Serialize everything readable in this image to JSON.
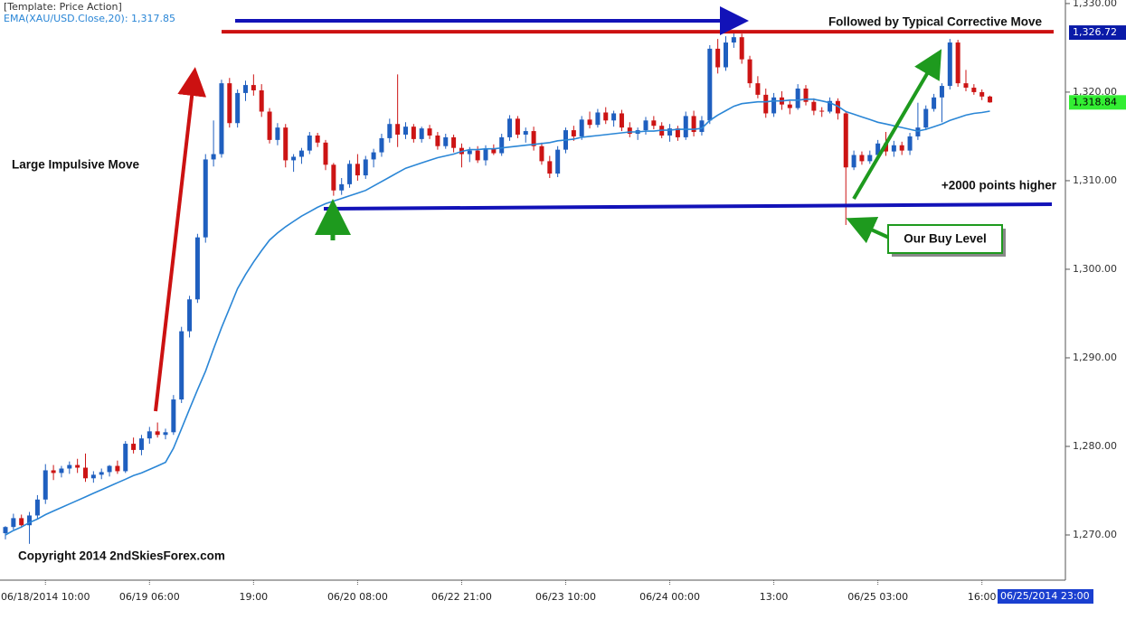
{
  "chart_data": {
    "type": "candlestick",
    "template": "[Template: Price Action]",
    "up_color": "#1f5fbf",
    "down_color": "#cc1414",
    "categories": [
      null,
      null,
      null,
      null,
      null,
      "06/18/2014 10:00",
      null,
      null,
      null,
      null,
      null,
      null,
      null,
      null,
      null,
      null,
      null,
      null,
      "06/19 06:00",
      null,
      null,
      null,
      null,
      null,
      null,
      null,
      null,
      null,
      null,
      null,
      null,
      "19:00",
      null,
      null,
      null,
      null,
      null,
      null,
      null,
      null,
      null,
      null,
      null,
      null,
      "06/20 08:00",
      null,
      null,
      null,
      null,
      null,
      null,
      null,
      null,
      null,
      null,
      null,
      null,
      "06/22 21:00",
      null,
      null,
      null,
      null,
      null,
      null,
      null,
      null,
      null,
      null,
      null,
      null,
      "06/23 10:00",
      null,
      null,
      null,
      null,
      null,
      null,
      null,
      null,
      null,
      null,
      null,
      null,
      "06/24 00:00",
      null,
      null,
      null,
      null,
      null,
      null,
      null,
      null,
      null,
      null,
      null,
      null,
      "13:00",
      null,
      null,
      null,
      null,
      null,
      null,
      null,
      null,
      null,
      null,
      null,
      null,
      "06/25 03:00",
      null,
      null,
      null,
      null,
      null,
      null,
      null,
      null,
      null,
      null,
      null,
      null,
      "16:00",
      null
    ],
    "open": [
      1270.2,
      1270.9,
      1271.9,
      1271.1,
      1272.2,
      1274.0,
      1277.3,
      1277.0,
      1277.5,
      1277.9,
      1277.6,
      1276.4,
      1276.8,
      1277.1,
      1277.8,
      1277.2,
      1280.3,
      1279.6,
      1280.9,
      1281.7,
      1281.3,
      1281.6,
      1285.3,
      1293.0,
      1296.6,
      1303.6,
      1312.4,
      1313.0,
      1321.0,
      1316.5,
      1319.9,
      1320.8,
      1320.2,
      1317.8,
      1314.6,
      1316.0,
      1312.3,
      1312.7,
      1313.4,
      1315.1,
      1314.3,
      1311.8,
      1308.9,
      1309.6,
      1311.9,
      1310.6,
      1312.4,
      1313.2,
      1314.8,
      1316.4,
      1315.2,
      1316.1,
      1314.7,
      1315.9,
      1315.1,
      1313.9,
      1314.9,
      1313.7,
      1313.0,
      1313.4,
      1312.3,
      1313.6,
      1313.1,
      1314.9,
      1317.0,
      1315.2,
      1315.6,
      1313.9,
      1312.2,
      1310.8,
      1313.5,
      1315.7,
      1315.0,
      1316.9,
      1316.3,
      1317.7,
      1316.8,
      1317.6,
      1316.0,
      1315.3,
      1315.7,
      1316.8,
      1316.2,
      1315.1,
      1315.9,
      1314.9,
      1317.3,
      1315.5,
      1316.8,
      1324.9,
      1322.8,
      1325.6,
      1326.2,
      1323.7,
      1321.0,
      1319.7,
      1317.6,
      1319.4,
      1318.6,
      1318.2,
      1320.4,
      1318.9,
      1317.9,
      1317.8,
      1319.0,
      1317.6,
      1311.5,
      1312.9,
      1312.2,
      1312.9,
      1314.2,
      1313.3,
      1314.0,
      1313.4,
      1315.0,
      1316.0,
      1318.1,
      1319.4,
      1320.7,
      1325.6,
      1321.0,
      1320.5,
      1320.0,
      1319.5
    ],
    "high": [
      1271.0,
      1272.4,
      1272.3,
      1272.6,
      1274.5,
      1278.0,
      1277.9,
      1277.8,
      1278.3,
      1278.6,
      1279.2,
      1277.2,
      1277.5,
      1277.9,
      1278.4,
      1280.6,
      1281.0,
      1281.3,
      1282.2,
      1282.7,
      1282.0,
      1285.8,
      1293.5,
      1297.0,
      1304.0,
      1313.0,
      1316.8,
      1321.4,
      1321.6,
      1320.3,
      1321.3,
      1322.0,
      1320.9,
      1318.2,
      1316.5,
      1316.4,
      1313.0,
      1313.7,
      1315.5,
      1315.4,
      1314.6,
      1312.0,
      1310.3,
      1312.3,
      1313.0,
      1312.8,
      1313.6,
      1315.3,
      1317.0,
      1322.0,
      1316.6,
      1316.4,
      1316.1,
      1316.3,
      1315.5,
      1315.3,
      1315.2,
      1314.2,
      1313.8,
      1313.9,
      1314.0,
      1314.1,
      1315.3,
      1317.4,
      1317.3,
      1316.0,
      1316.1,
      1314.3,
      1312.8,
      1313.9,
      1316.0,
      1316.2,
      1317.3,
      1317.8,
      1318.1,
      1318.3,
      1317.9,
      1318.0,
      1316.6,
      1316.0,
      1317.2,
      1317.3,
      1316.6,
      1316.4,
      1316.2,
      1317.8,
      1317.9,
      1317.3,
      1325.3,
      1326.0,
      1326.3,
      1326.7,
      1326.6,
      1324.1,
      1321.8,
      1320.4,
      1319.9,
      1320.1,
      1319.0,
      1320.9,
      1320.8,
      1319.3,
      1318.3,
      1319.4,
      1319.3,
      1317.9,
      1313.4,
      1313.3,
      1313.4,
      1314.6,
      1315.5,
      1314.5,
      1314.4,
      1315.4,
      1318.8,
      1318.5,
      1319.8,
      1321.0,
      1326.0,
      1325.9,
      1322.5,
      1320.9,
      1320.3,
      1319.6
    ],
    "low": [
      1269.5,
      1270.6,
      1270.8,
      1269.0,
      1271.8,
      1273.5,
      1276.2,
      1276.5,
      1276.9,
      1277.0,
      1276.0,
      1275.9,
      1276.3,
      1276.6,
      1276.9,
      1277.0,
      1279.2,
      1279.0,
      1280.3,
      1281.0,
      1280.8,
      1281.3,
      1284.9,
      1292.3,
      1296.2,
      1303.0,
      1311.6,
      1312.6,
      1316.0,
      1316.0,
      1319.0,
      1319.6,
      1317.2,
      1314.2,
      1314.0,
      1311.5,
      1311.0,
      1311.9,
      1313.0,
      1313.8,
      1311.2,
      1308.3,
      1308.4,
      1309.2,
      1310.0,
      1310.2,
      1311.5,
      1312.7,
      1314.3,
      1313.8,
      1314.7,
      1314.3,
      1314.3,
      1314.7,
      1313.5,
      1313.6,
      1313.2,
      1311.5,
      1312.1,
      1312.0,
      1311.7,
      1312.9,
      1312.8,
      1314.5,
      1314.8,
      1314.3,
      1313.4,
      1311.8,
      1310.3,
      1310.4,
      1313.1,
      1314.5,
      1314.6,
      1315.9,
      1316.0,
      1316.4,
      1316.1,
      1315.6,
      1314.9,
      1314.6,
      1315.2,
      1315.8,
      1314.8,
      1314.4,
      1314.5,
      1314.6,
      1315.0,
      1315.1,
      1316.4,
      1322.1,
      1322.4,
      1325.0,
      1323.2,
      1320.5,
      1319.3,
      1317.1,
      1317.2,
      1318.0,
      1317.5,
      1318.0,
      1318.5,
      1317.4,
      1317.2,
      1317.6,
      1316.9,
      1305.0,
      1311.2,
      1311.8,
      1311.9,
      1312.4,
      1312.8,
      1312.7,
      1312.9,
      1312.9,
      1314.6,
      1315.7,
      1317.8,
      1316.6,
      1320.3,
      1320.6,
      1320.1,
      1319.7,
      1319.1,
      1318.8
    ],
    "close": [
      1270.9,
      1271.9,
      1271.1,
      1272.2,
      1274.0,
      1277.3,
      1277.0,
      1277.5,
      1277.9,
      1277.6,
      1276.4,
      1276.8,
      1277.1,
      1277.8,
      1277.2,
      1280.3,
      1279.6,
      1280.9,
      1281.7,
      1281.3,
      1281.6,
      1285.3,
      1293.0,
      1296.6,
      1303.6,
      1312.4,
      1313.0,
      1321.0,
      1316.5,
      1319.9,
      1320.8,
      1320.2,
      1317.8,
      1314.6,
      1316.0,
      1312.3,
      1312.7,
      1313.4,
      1315.1,
      1314.3,
      1311.8,
      1308.9,
      1309.6,
      1311.9,
      1310.6,
      1312.4,
      1313.2,
      1314.8,
      1316.4,
      1315.2,
      1316.1,
      1314.7,
      1315.9,
      1315.1,
      1313.9,
      1314.9,
      1313.7,
      1313.0,
      1313.4,
      1312.3,
      1313.6,
      1313.1,
      1314.9,
      1317.0,
      1315.2,
      1315.6,
      1313.9,
      1312.2,
      1310.8,
      1313.5,
      1315.7,
      1315.0,
      1316.9,
      1316.3,
      1317.7,
      1316.8,
      1317.6,
      1316.0,
      1315.3,
      1315.7,
      1316.8,
      1316.2,
      1315.1,
      1315.9,
      1314.9,
      1317.3,
      1315.5,
      1316.8,
      1324.9,
      1322.8,
      1325.6,
      1326.2,
      1323.7,
      1321.0,
      1319.7,
      1317.6,
      1319.4,
      1318.6,
      1318.2,
      1320.4,
      1318.9,
      1317.9,
      1317.8,
      1319.0,
      1317.6,
      1311.5,
      1312.9,
      1312.2,
      1312.9,
      1314.2,
      1313.3,
      1314.0,
      1313.4,
      1315.0,
      1316.0,
      1318.1,
      1319.4,
      1320.7,
      1325.6,
      1321.0,
      1320.5,
      1320.0,
      1319.5,
      1318.84
    ],
    "ema": {
      "name": "EMA(XAU/USD.Close,20): 1,317.85",
      "color": "#2a86d6",
      "values": [
        1270.0,
        1270.5,
        1270.9,
        1271.4,
        1271.8,
        1272.3,
        1272.7,
        1273.1,
        1273.5,
        1273.9,
        1274.3,
        1274.7,
        1275.1,
        1275.5,
        1275.9,
        1276.3,
        1276.7,
        1277.0,
        1277.4,
        1277.8,
        1278.2,
        1279.8,
        1282.0,
        1284.2,
        1286.4,
        1288.5,
        1291.0,
        1293.4,
        1295.6,
        1297.8,
        1299.4,
        1300.8,
        1302.1,
        1303.3,
        1304.1,
        1304.8,
        1305.4,
        1306.0,
        1306.5,
        1307.0,
        1307.4,
        1307.7,
        1308.0,
        1308.3,
        1308.6,
        1308.9,
        1309.4,
        1309.9,
        1310.4,
        1310.9,
        1311.4,
        1311.7,
        1312.0,
        1312.3,
        1312.6,
        1312.8,
        1313.0,
        1313.3,
        1313.5,
        1313.5,
        1313.6,
        1313.6,
        1313.7,
        1313.8,
        1313.9,
        1314.0,
        1314.1,
        1314.2,
        1314.3,
        1314.5,
        1314.6,
        1314.7,
        1314.9,
        1315.0,
        1315.1,
        1315.2,
        1315.3,
        1315.4,
        1315.5,
        1315.5,
        1315.6,
        1315.6,
        1315.7,
        1315.7,
        1315.8,
        1315.8,
        1315.8,
        1315.9,
        1316.8,
        1317.4,
        1317.9,
        1318.4,
        1318.7,
        1318.8,
        1318.9,
        1318.9,
        1319.0,
        1319.0,
        1319.1,
        1319.1,
        1319.2,
        1319.2,
        1319.0,
        1318.8,
        1318.4,
        1317.8,
        1317.5,
        1317.2,
        1316.9,
        1316.6,
        1316.4,
        1316.2,
        1316.0,
        1315.8,
        1315.6,
        1315.8,
        1316.1,
        1316.4,
        1316.8,
        1317.1,
        1317.4,
        1317.6,
        1317.7,
        1317.85
      ]
    },
    "ylim": [
      1264.9,
      1330.4
    ],
    "yticks": [
      {
        "value": 1270,
        "label": "1,270.00"
      },
      {
        "value": 1280,
        "label": "1,280.00"
      },
      {
        "value": 1290,
        "label": "1,290.00"
      },
      {
        "value": 1300,
        "label": "1,300.00"
      },
      {
        "value": 1310,
        "label": "1,310.00"
      },
      {
        "value": 1320,
        "label": "1,320.00"
      },
      {
        "value": 1330,
        "label": "1,330.00"
      }
    ],
    "price_markers": [
      {
        "value": 1326.72,
        "label": "1,326.72",
        "color": "#0a1aa8"
      },
      {
        "value": 1318.84,
        "label": "1,318.84",
        "color": "#33ee33"
      }
    ],
    "time_marker": "06/25/2014 23:00",
    "annotations": [
      "Followed by Typical Corrective Move",
      "Large Impulsive Move",
      "+2000 points higher",
      "Our Buy Level",
      "Copyright 2014 2ndSkiesForex.com"
    ]
  }
}
